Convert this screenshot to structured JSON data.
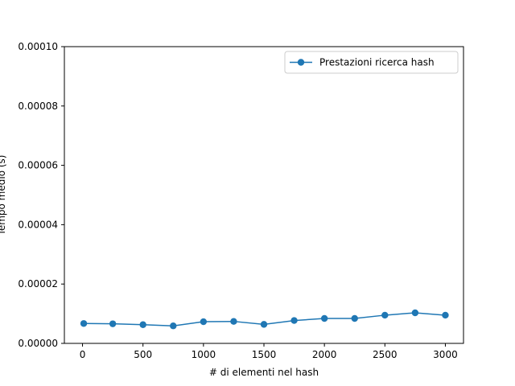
{
  "chart_data": {
    "type": "line",
    "title": "",
    "xlabel": "# di elementi nel hash",
    "ylabel": "Tempo medio (s)",
    "xlim": [
      -150,
      3150
    ],
    "ylim": [
      0,
      0.0001
    ],
    "xticks": [
      0,
      500,
      1000,
      1500,
      2000,
      2500,
      3000
    ],
    "xtick_labels": [
      "0",
      "500",
      "1000",
      "1500",
      "2000",
      "2500",
      "3000"
    ],
    "yticks": [
      0,
      2e-05,
      4e-05,
      6e-05,
      8e-05,
      0.0001
    ],
    "ytick_labels": [
      "0.00000",
      "0.00002",
      "0.00004",
      "0.00006",
      "0.00008",
      "0.00010"
    ],
    "grid": false,
    "legend_position": "upper right",
    "series": [
      {
        "name": "Prestazioni ricerca hash",
        "color": "#1f77b4",
        "marker": "circle",
        "x": [
          10,
          250,
          500,
          750,
          1000,
          1250,
          1500,
          1750,
          2000,
          2250,
          2500,
          2750,
          3000
        ],
        "y": [
          6.7e-06,
          6.6e-06,
          6.3e-06,
          5.9e-06,
          7.3e-06,
          7.4e-06,
          6.4e-06,
          7.7e-06,
          8.4e-06,
          8.4e-06,
          9.5e-06,
          1.03e-05,
          9.5e-06
        ]
      }
    ]
  }
}
